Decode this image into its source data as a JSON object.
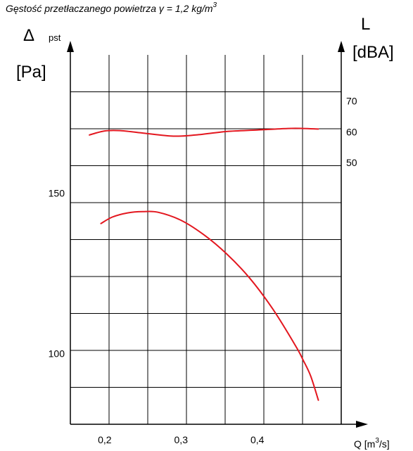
{
  "chart_data": {
    "type": "line",
    "title": "",
    "note": {
      "text": "Gęstość przetłaczanego powietrza ",
      "symbol": "γ",
      "value": " = 1,2 kg/m",
      "sup": "3"
    },
    "left_axis": {
      "symbol": "Δ",
      "sub": "pst",
      "unit": "[Pa]",
      "ticks": [
        {
          "value": 150,
          "label": "150"
        },
        {
          "value": 100,
          "label": "100"
        }
      ],
      "range": [
        78,
        193
      ]
    },
    "right_axis": {
      "label": "L",
      "unit": "[dBA]",
      "ticks": [
        {
          "value": 70,
          "label": "70"
        },
        {
          "value": 60,
          "label": "60"
        },
        {
          "value": 50,
          "label": "50"
        }
      ],
      "range": [
        -35,
        85
      ]
    },
    "x_axis": {
      "label_text": "Q [m",
      "label_sup": "3",
      "label_end": "/s]",
      "ticks": [
        {
          "value": 0.2,
          "label": "0,2"
        },
        {
          "value": 0.3,
          "label": "0,3"
        },
        {
          "value": 0.4,
          "label": "0,4"
        }
      ],
      "range": [
        0.155,
        0.51
      ]
    },
    "grid": true,
    "series": [
      {
        "axis": "right",
        "color": "#e3171f",
        "points": [
          [
            0.18,
            59.0
          ],
          [
            0.2,
            60.3
          ],
          [
            0.22,
            60.4
          ],
          [
            0.25,
            59.6
          ],
          [
            0.29,
            58.6
          ],
          [
            0.32,
            59.0
          ],
          [
            0.36,
            60.1
          ],
          [
            0.4,
            60.6
          ],
          [
            0.44,
            61.1
          ],
          [
            0.46,
            61.1
          ],
          [
            0.48,
            60.9
          ]
        ]
      },
      {
        "axis": "left",
        "color": "#e3171f",
        "points": [
          [
            0.195,
            140.5
          ],
          [
            0.21,
            142.5
          ],
          [
            0.23,
            143.8
          ],
          [
            0.25,
            144.2
          ],
          [
            0.27,
            144.0
          ],
          [
            0.3,
            141.5
          ],
          [
            0.33,
            137.0
          ],
          [
            0.36,
            131.0
          ],
          [
            0.39,
            123.5
          ],
          [
            0.42,
            114.0
          ],
          [
            0.45,
            102.5
          ],
          [
            0.46,
            98.0
          ],
          [
            0.47,
            93.0
          ],
          [
            0.48,
            85.5
          ]
        ]
      }
    ]
  }
}
